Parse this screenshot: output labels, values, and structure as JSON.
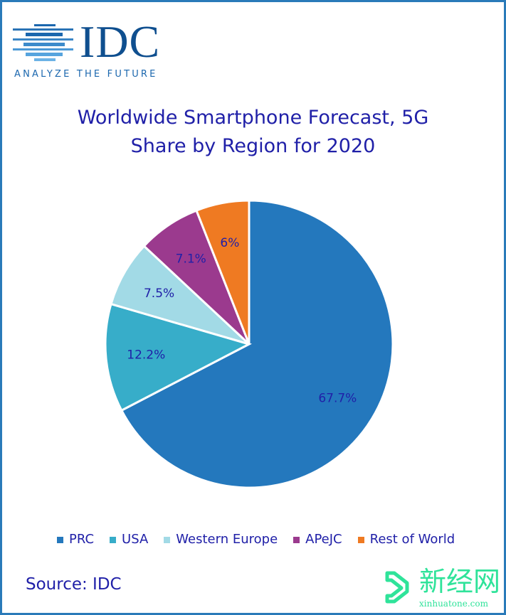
{
  "logo": {
    "brand": "IDC",
    "tagline": "ANALYZE THE FUTURE"
  },
  "source": "Source: IDC",
  "watermark": {
    "name": "新经网",
    "url": "xinhuatone.com"
  },
  "chart_data": {
    "type": "pie",
    "title_lines": [
      "Worldwide Smartphone Forecast, 5G",
      "Share by Region for 2020"
    ],
    "categories": [
      "PRC",
      "USA",
      "Western Europe",
      "APeJC",
      "Rest of World"
    ],
    "values": [
      67.7,
      12.2,
      7.5,
      7.1,
      6
    ],
    "labels": [
      "67.7%",
      "12.2%",
      "7.5%",
      "7.1%",
      "6%"
    ],
    "colors": [
      "#2478bd",
      "#37adc9",
      "#a2dae6",
      "#9b3a8e",
      "#ef7a22"
    ],
    "start_angle": "12 o'clock",
    "direction": "clockwise",
    "legend_position": "bottom"
  }
}
